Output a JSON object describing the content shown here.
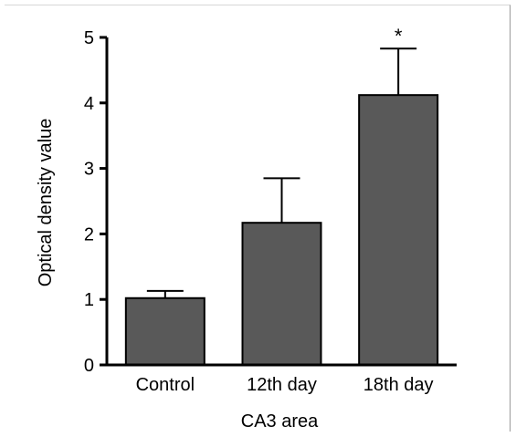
{
  "chart_data": {
    "type": "bar",
    "categories": [
      "Control",
      "12th day",
      "18th day"
    ],
    "values": [
      1.02,
      2.17,
      4.12
    ],
    "errors": [
      0.11,
      0.68,
      0.71
    ],
    "annotations": [
      "",
      "",
      "*"
    ],
    "xlabel": "CA3 area",
    "ylabel": "Optical density value",
    "ylim": [
      0,
      5
    ],
    "yticks": [
      "0",
      "1",
      "2",
      "3",
      "4",
      "5"
    ],
    "grid": false,
    "bar_color": "#595959",
    "axis_color": "#000000"
  }
}
